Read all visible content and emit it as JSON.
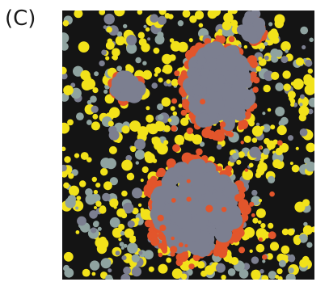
{
  "panel": {
    "label": "(C)"
  },
  "image": {
    "icon": "segmented-micrograph-image",
    "colors": {
      "background": "#141414",
      "yellow": "#f2e21a",
      "grey_blue": "#7c7f90",
      "teal_grey": "#8fa3a0",
      "orange_red": "#e2552b"
    }
  }
}
